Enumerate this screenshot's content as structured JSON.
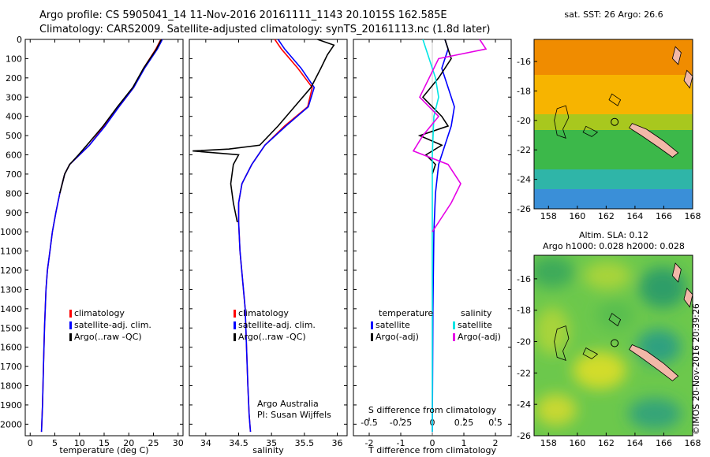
{
  "header": {
    "title_line1": "Argo profile: CS 5905041_14 11-Nov-2016 20161111_1143 20.1015S 162.585E",
    "title_line2": "Climatology: CARS2009. Satellite-adjusted climatology: synTS_20161113.nc (1.8d later)"
  },
  "credit": "©IMOS 20-Nov-2016 20:39:26",
  "colors": {
    "climatology": "#ff0000",
    "satellite": "#0000ff",
    "argo": "#000000",
    "satellite_salinity": "#00e5e5",
    "argo_salinity": "#e600e6"
  },
  "chart_data": [
    {
      "type": "line",
      "id": "temperature",
      "xlabel": "temperature (deg C)",
      "xlim": [
        -1,
        31
      ],
      "ylim": [
        2060,
        0
      ],
      "xticks": [
        0,
        5,
        10,
        15,
        20,
        25,
        30
      ],
      "yticks": [
        0,
        100,
        200,
        300,
        400,
        500,
        600,
        700,
        800,
        900,
        1000,
        1100,
        1200,
        1300,
        1400,
        1500,
        1600,
        1700,
        1800,
        1900,
        2000
      ],
      "legend": [
        "climatology",
        "satellite-adj. clim.",
        "Argo(..raw -QC)"
      ],
      "series": [
        {
          "name": "climatology",
          "color": "#ff0000",
          "x": [
            26.5,
            25.5,
            23,
            21,
            18,
            15,
            12,
            10,
            8,
            7,
            6,
            5.2,
            4.5,
            4,
            3.5,
            3.2,
            2.9,
            2.7,
            2.5,
            2.3
          ],
          "y": [
            0,
            50,
            150,
            250,
            350,
            450,
            550,
            600,
            650,
            700,
            800,
            900,
            1000,
            1100,
            1200,
            1300,
            1500,
            1700,
            1900,
            2040
          ]
        },
        {
          "name": "satellite-adj. clim.",
          "color": "#0000ff",
          "x": [
            26.8,
            25.8,
            23.2,
            21,
            18,
            15.2,
            12,
            10,
            8,
            7,
            6,
            5.2,
            4.5,
            4,
            3.5,
            3.2,
            2.9,
            2.7,
            2.5,
            2.3
          ],
          "y": [
            0,
            50,
            150,
            250,
            350,
            450,
            550,
            600,
            650,
            700,
            800,
            900,
            1000,
            1100,
            1200,
            1300,
            1500,
            1700,
            1900,
            2040
          ]
        },
        {
          "name": "Argo(..raw -QC)",
          "color": "#000000",
          "x": [
            26.6,
            25.6,
            23,
            20.8,
            17.7,
            14.8,
            11.5,
            9.8,
            8,
            7,
            6
          ],
          "y": [
            0,
            50,
            150,
            250,
            350,
            450,
            550,
            600,
            650,
            700,
            800
          ]
        }
      ]
    },
    {
      "type": "line",
      "id": "salinity",
      "xlabel": "salinity",
      "xlim": [
        33.75,
        36.15
      ],
      "ylim": [
        2060,
        0
      ],
      "xticks": [
        34,
        34.5,
        35,
        35.5,
        36
      ],
      "legend": [
        "climatology",
        "satellite-adj. clim.",
        "Argo(..raw -QC)"
      ],
      "annotation": [
        "Argo Australia",
        "PI: Susan Wijffels"
      ],
      "series": [
        {
          "name": "climatology",
          "color": "#ff0000",
          "x": [
            35.05,
            35.15,
            35.4,
            35.62,
            35.55,
            35.2,
            34.9,
            34.7,
            34.55,
            34.5,
            34.5,
            34.52,
            34.56,
            34.6,
            34.62,
            34.64,
            34.66,
            34.68
          ],
          "y": [
            0,
            50,
            150,
            250,
            350,
            450,
            550,
            650,
            750,
            850,
            950,
            1100,
            1250,
            1400,
            1600,
            1800,
            1950,
            2040
          ]
        },
        {
          "name": "satellite-adj. clim.",
          "color": "#0000ff",
          "x": [
            35.1,
            35.2,
            35.45,
            35.65,
            35.56,
            35.22,
            34.9,
            34.7,
            34.55,
            34.5,
            34.5,
            34.52,
            34.56,
            34.6,
            34.62,
            34.64,
            34.66,
            34.68
          ],
          "y": [
            0,
            50,
            150,
            250,
            350,
            450,
            550,
            650,
            750,
            850,
            950,
            1100,
            1250,
            1400,
            1600,
            1800,
            1950,
            2040
          ]
        },
        {
          "name": "Argo(..raw -QC)",
          "color": "#000000",
          "x": [
            35.7,
            35.95,
            35.85,
            35.75,
            35.6,
            35.35,
            35.1,
            34.82,
            34.35,
            33.8,
            34.5,
            34.42,
            34.38,
            34.42,
            34.48
          ],
          "y": [
            0,
            30,
            80,
            150,
            250,
            350,
            450,
            550,
            570,
            580,
            600,
            650,
            750,
            850,
            950
          ]
        }
      ]
    },
    {
      "type": "line",
      "id": "difference",
      "xlabel": "T difference from climatology",
      "xlabel_top": "S difference from climatology",
      "xlim": [
        -2.5,
        2.5
      ],
      "ylim": [
        2060,
        0
      ],
      "xticks": [
        -2,
        -1,
        0,
        1,
        2
      ],
      "xticks_top": [
        -0.5,
        -0.25,
        0,
        0.25,
        0.5
      ],
      "legend_temperature": [
        "temperature",
        "satellite",
        "Argo(-adj)"
      ],
      "legend_salinity": [
        "salinity",
        "satellite",
        "Argo(-adj)"
      ],
      "series": [
        {
          "name": "satellite",
          "group": "temperature",
          "color": "#0000ff",
          "x": [
            0.4,
            0.5,
            0.3,
            0.5,
            0.7,
            0.6,
            0.4,
            0.2,
            0.1,
            0.05,
            0.02,
            0
          ],
          "y": [
            0,
            50,
            150,
            250,
            350,
            450,
            550,
            650,
            800,
            1000,
            1400,
            2040
          ]
        },
        {
          "name": "Argo(-adj)",
          "group": "temperature",
          "color": "#000000",
          "x": [
            0.4,
            0.6,
            0.2,
            -0.3,
            0.3,
            0.5,
            -0.4,
            0.3,
            -0.2,
            0.1,
            0
          ],
          "y": [
            0,
            100,
            200,
            300,
            400,
            450,
            500,
            550,
            600,
            650,
            700
          ]
        },
        {
          "name": "satellite",
          "group": "salinity",
          "color": "#00e5e5",
          "x": [
            -0.3,
            -0.1,
            0.1,
            0.2,
            0.05,
            0,
            0,
            0,
            0
          ],
          "y": [
            0,
            100,
            200,
            300,
            400,
            600,
            800,
            1200,
            2040
          ]
        },
        {
          "name": "Argo(-adj)",
          "group": "salinity",
          "color": "#e600e6",
          "x": [
            1.5,
            1.7,
            0.2,
            -0.4,
            0.2,
            -0.3,
            -0.6,
            0.5,
            0.9,
            0.6,
            0.2,
            0
          ],
          "y": [
            0,
            50,
            100,
            300,
            400,
            500,
            580,
            650,
            750,
            850,
            950,
            1000
          ]
        }
      ]
    },
    {
      "type": "heatmap",
      "id": "sst_map",
      "title": "sat. SST: 26 Argo: 26.6",
      "xlim": [
        157,
        168
      ],
      "ylim": [
        -26,
        -14.5
      ],
      "xticks": [
        158,
        160,
        162,
        164,
        166,
        168
      ],
      "yticks": [
        -16,
        -18,
        -20,
        -22,
        -24,
        -26
      ],
      "marker": {
        "lon": 162.585,
        "lat": -20.1015
      }
    },
    {
      "type": "heatmap",
      "id": "sla_map",
      "title": [
        "Altim. SLA: 0.12",
        "Argo h1000: 0.028 h2000: 0.028"
      ],
      "xlim": [
        157,
        168
      ],
      "ylim": [
        -26,
        -14.5
      ],
      "xticks": [
        158,
        160,
        162,
        164,
        166,
        168
      ],
      "yticks": [
        -16,
        -18,
        -20,
        -22,
        -24,
        -26
      ],
      "marker": {
        "lon": 162.585,
        "lat": -20.1015
      }
    }
  ]
}
